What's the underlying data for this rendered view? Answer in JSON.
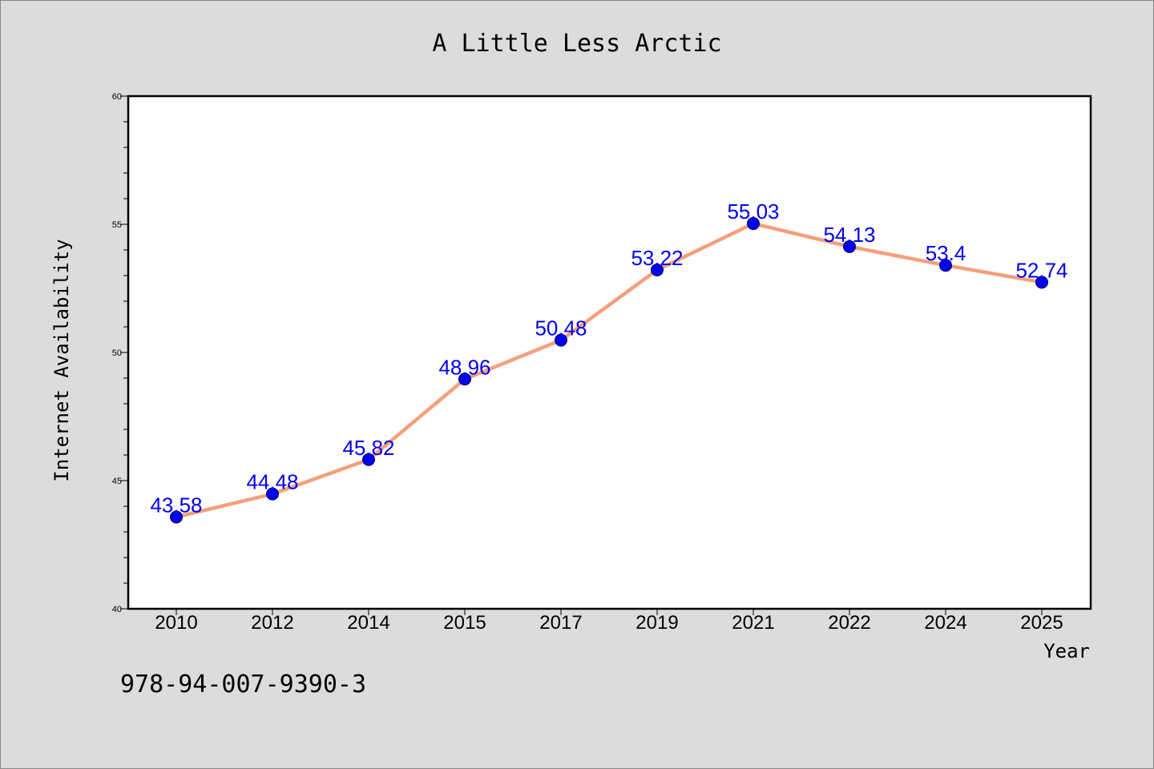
{
  "footer_code": "978-94-007-9390-3",
  "colors": {
    "figure_background": "#dcdcdc",
    "plot_background": "#ffffff",
    "line": "#f4a07c",
    "marker": "#0000ee",
    "data_label": "#0000ee"
  },
  "chart_data": {
    "type": "line",
    "title": "A Little Less Arctic",
    "xlabel": "Year",
    "ylabel": "Internet Availability",
    "categories": [
      "2010",
      "2012",
      "2014",
      "2015",
      "2017",
      "2019",
      "2021",
      "2022",
      "2024",
      "2025"
    ],
    "values": [
      43.58,
      44.48,
      45.82,
      48.96,
      50.48,
      53.22,
      55.03,
      54.13,
      53.4,
      52.74
    ],
    "data_labels": [
      "43.58",
      "44.48",
      "45.82",
      "48.96",
      "50.48",
      "53.22",
      "55.03",
      "54.13",
      "53.4",
      "52.74"
    ],
    "ylim": [
      40,
      60
    ],
    "y_ticks": [
      40,
      45,
      50,
      55,
      60
    ],
    "y_minor_step": 1,
    "grid": false,
    "legend": "none"
  }
}
